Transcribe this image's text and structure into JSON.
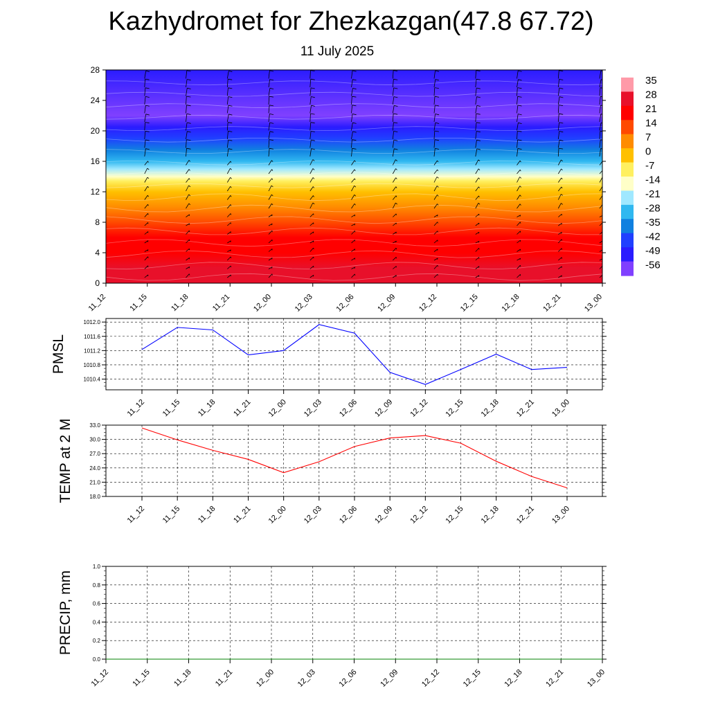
{
  "title": "Kazhydromet for Zhezkazgan(47.8 67.72)",
  "subtitle": "11 July 2025",
  "time_labels": [
    "11_12",
    "11_15",
    "11_18",
    "11_21",
    "12_00",
    "12_03",
    "12_06",
    "12_09",
    "12_12",
    "12_15",
    "12_18",
    "12_21",
    "13_00"
  ],
  "chart_data": [
    {
      "type": "heatmap",
      "title": "",
      "y_ticks": [
        0,
        4,
        8,
        12,
        16,
        20,
        24,
        28
      ],
      "ylim": [
        0,
        28
      ],
      "x_tick_labels": [
        "11_12",
        "11_15",
        "11_18",
        "11_21",
        "12_00",
        "12_03",
        "12_06",
        "12_09",
        "12_12",
        "12_15",
        "12_18",
        "12_21",
        "13_00"
      ],
      "colorbar_labels": [
        "35",
        "28",
        "21",
        "14",
        "7",
        "0",
        "-7",
        "-14",
        "-21",
        "-28",
        "-35",
        "-42",
        "-49",
        "-56"
      ],
      "colorbar_colors": [
        "#ff9aa8",
        "#e8102a",
        "#ff0000",
        "#ff4a00",
        "#ff8c00",
        "#ffc000",
        "#fff060",
        "#ffffc8",
        "#a0e8ff",
        "#30b8f0",
        "#1080e0",
        "#2040ff",
        "#2a1cff",
        "#8040ff"
      ],
      "temperature_profile": [
        {
          "level": 0,
          "value": 30
        },
        {
          "level": 2,
          "value": 28
        },
        {
          "level": 4,
          "value": 24
        },
        {
          "level": 6,
          "value": 19
        },
        {
          "level": 8,
          "value": 14
        },
        {
          "level": 10,
          "value": 7
        },
        {
          "level": 12,
          "value": 0
        },
        {
          "level": 13.4,
          "value": -7
        },
        {
          "level": 14,
          "value": -14
        },
        {
          "level": 15,
          "value": -21
        },
        {
          "level": 16,
          "value": -28
        },
        {
          "level": 17.5,
          "value": -35
        },
        {
          "level": 19,
          "value": -42
        },
        {
          "level": 20.5,
          "value": -49
        },
        {
          "level": 22,
          "value": -56
        },
        {
          "level": 28,
          "value": -52
        }
      ],
      "wind_barbs": true
    },
    {
      "type": "line",
      "ylabel": "PMSL",
      "ylim": [
        1010.1,
        1012.1
      ],
      "y_ticks": [
        "1010.4",
        "1010.8",
        "1011.2",
        "1011.6",
        "1012.0"
      ],
      "x": [
        "11_12",
        "11_15",
        "11_18",
        "11_21",
        "12_00",
        "12_03",
        "12_06",
        "12_09",
        "12_12",
        "12_15",
        "12_18",
        "12_21",
        "13_00"
      ],
      "values": [
        1011.23,
        1011.85,
        1011.78,
        1011.08,
        1011.2,
        1011.93,
        1011.69,
        1010.59,
        1010.25,
        1010.67,
        1011.1,
        1010.67,
        1010.73
      ],
      "color": "#0000ff"
    },
    {
      "type": "line",
      "ylabel": "TEMP at 2 M",
      "ylim": [
        18,
        33
      ],
      "y_ticks": [
        "18.0",
        "21.0",
        "24.0",
        "27.0",
        "30.0",
        "33.0"
      ],
      "x": [
        "11_12",
        "11_15",
        "11_18",
        "11_21",
        "12_00",
        "12_03",
        "12_06",
        "12_09",
        "12_12",
        "12_15",
        "12_18",
        "12_21",
        "13_00"
      ],
      "values": [
        32.4,
        29.9,
        27.7,
        25.8,
        23.0,
        25.3,
        28.5,
        30.3,
        30.8,
        29.2,
        25.4,
        22.2,
        19.8
      ],
      "color": "#ff0000"
    },
    {
      "type": "line",
      "ylabel": "PRECIP, mm",
      "ylim": [
        0,
        1
      ],
      "y_ticks": [
        "0.0",
        "0.2",
        "0.4",
        "0.6",
        "0.8",
        "1.0"
      ],
      "x": [
        "11_12",
        "11_15",
        "11_18",
        "11_21",
        "12_00",
        "12_03",
        "12_06",
        "12_09",
        "12_12",
        "12_15",
        "12_18",
        "12_21",
        "13_00"
      ],
      "values": [
        0,
        0,
        0,
        0,
        0,
        0,
        0,
        0,
        0,
        0,
        0,
        0,
        0
      ],
      "color": "#008000"
    }
  ]
}
